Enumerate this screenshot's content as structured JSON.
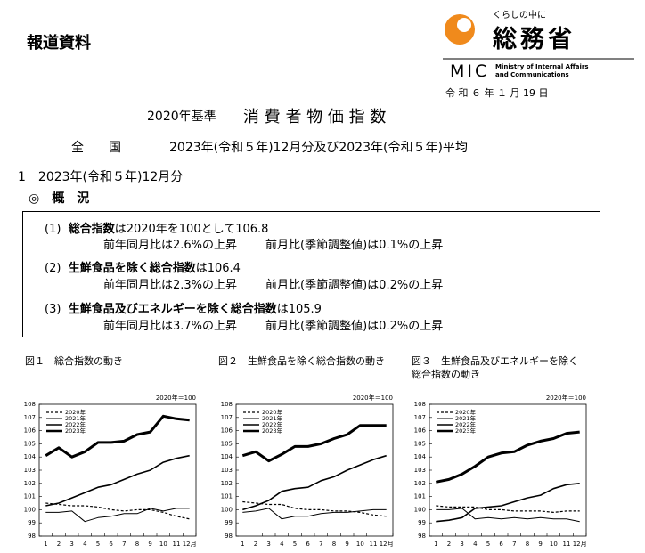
{
  "header": {
    "label": "報道資料",
    "logo": {
      "tagline": "くらしの中に",
      "name": "総務省",
      "abbr": "MIC",
      "english": [
        "Ministry of Internal Affairs",
        "and Communications"
      ]
    },
    "date": "令 和 ６ 年 １ 月 19 日"
  },
  "title": {
    "base": "2020年基準",
    "main": "消 費 者 物 価 指 数"
  },
  "scope": {
    "area": "全　　国",
    "period": "2023年(令和５年)12月分及び2023年(令和５年)平均"
  },
  "section": {
    "heading": "1　2023年(令和５年)12月分",
    "subheading": "◎　概　況"
  },
  "summary": [
    {
      "number": "(1)",
      "index": "総合指数",
      "level": "は2020年を100として106.8",
      "yoy": "前年同月比は2.6%の上昇",
      "mom": "前月比(季節調整値)は0.1%の上昇"
    },
    {
      "number": "(2)",
      "index": "生鮮食品を除く総合指数",
      "level": "は106.4",
      "yoy": "前年同月比は2.3%の上昇",
      "mom": "前月比(季節調整値)は0.2%の上昇"
    },
    {
      "number": "(3)",
      "index": "生鮮食品及びエネルギーを除く総合指数",
      "level": "は105.9",
      "yoy": "前年同月比は3.7%の上昇",
      "mom": "前月比(季節調整値)は0.2%の上昇"
    }
  ],
  "chart_data": [
    {
      "type": "line",
      "title": "図１　総合指数の動き",
      "note": "2020年＝100",
      "categories": [
        "1",
        "2",
        "3",
        "4",
        "5",
        "6",
        "7",
        "8",
        "9",
        "10",
        "11",
        "12月"
      ],
      "ylim": [
        98,
        108
      ],
      "yticks": [
        98,
        99,
        100,
        101,
        102,
        103,
        104,
        105,
        106,
        107,
        108
      ],
      "grid": false,
      "series": [
        {
          "name": "2020年",
          "color": "#000000",
          "dashed": true,
          "width": 1.2,
          "values": [
            100.5,
            100.4,
            100.3,
            100.3,
            100.2,
            100.0,
            99.9,
            100.0,
            100.0,
            99.8,
            99.5,
            99.3
          ]
        },
        {
          "name": "2021年",
          "color": "#000000",
          "dashed": false,
          "width": 1,
          "values": [
            99.8,
            99.8,
            99.9,
            99.1,
            99.4,
            99.5,
            99.7,
            99.7,
            100.1,
            99.9,
            100.1,
            100.1
          ]
        },
        {
          "name": "2022年",
          "color": "#000000",
          "dashed": false,
          "width": 1.6,
          "values": [
            100.3,
            100.5,
            100.9,
            101.3,
            101.7,
            101.9,
            102.3,
            102.7,
            103.0,
            103.6,
            103.9,
            104.1
          ]
        },
        {
          "name": "2023年",
          "color": "#000000",
          "dashed": false,
          "width": 3,
          "values": [
            104.1,
            104.7,
            104.0,
            104.4,
            105.1,
            105.1,
            105.2,
            105.7,
            105.9,
            107.1,
            106.9,
            106.8
          ]
        }
      ]
    },
    {
      "type": "line",
      "title": "図２　生鮮食品を除く総合指数の動き",
      "note": "2020年＝100",
      "categories": [
        "1",
        "2",
        "3",
        "4",
        "5",
        "6",
        "7",
        "8",
        "9",
        "10",
        "11",
        "12月"
      ],
      "ylim": [
        98,
        108
      ],
      "yticks": [
        98,
        99,
        100,
        101,
        102,
        103,
        104,
        105,
        106,
        107,
        108
      ],
      "grid": false,
      "series": [
        {
          "name": "2020年",
          "color": "#000000",
          "dashed": true,
          "width": 1.2,
          "values": [
            100.6,
            100.5,
            100.4,
            100.4,
            100.1,
            100.0,
            100.0,
            99.9,
            99.9,
            99.8,
            99.6,
            99.5
          ]
        },
        {
          "name": "2021年",
          "color": "#000000",
          "dashed": false,
          "width": 1,
          "values": [
            99.8,
            99.9,
            100.1,
            99.3,
            99.5,
            99.5,
            99.7,
            99.8,
            99.8,
            99.9,
            100.0,
            100.0
          ]
        },
        {
          "name": "2022年",
          "color": "#000000",
          "dashed": false,
          "width": 1.6,
          "values": [
            100.0,
            100.3,
            100.7,
            101.4,
            101.6,
            101.7,
            102.2,
            102.5,
            103.0,
            103.4,
            103.8,
            104.1
          ]
        },
        {
          "name": "2023年",
          "color": "#000000",
          "dashed": false,
          "width": 3,
          "values": [
            104.1,
            104.4,
            103.7,
            104.2,
            104.8,
            104.8,
            105.0,
            105.4,
            105.7,
            106.4,
            106.4,
            106.4
          ]
        }
      ]
    },
    {
      "type": "line",
      "title": "図３　生鮮食品及びエネルギーを除く総合指数の動き",
      "note": "2020年＝100",
      "categories": [
        "1",
        "2",
        "3",
        "4",
        "5",
        "6",
        "7",
        "8",
        "9",
        "10",
        "11",
        "12月"
      ],
      "ylim": [
        98,
        108
      ],
      "yticks": [
        98,
        99,
        100,
        101,
        102,
        103,
        104,
        105,
        106,
        107,
        108
      ],
      "grid": false,
      "series": [
        {
          "name": "2020年",
          "color": "#000000",
          "dashed": true,
          "width": 1.2,
          "values": [
            100.3,
            100.2,
            100.2,
            100.2,
            100.0,
            100.0,
            99.9,
            99.9,
            99.9,
            99.8,
            99.9,
            99.9
          ]
        },
        {
          "name": "2021年",
          "color": "#000000",
          "dashed": false,
          "width": 1,
          "values": [
            100.0,
            100.0,
            100.1,
            99.3,
            99.4,
            99.3,
            99.4,
            99.3,
            99.4,
            99.3,
            99.3,
            99.1
          ]
        },
        {
          "name": "2022年",
          "color": "#000000",
          "dashed": false,
          "width": 1.6,
          "values": [
            99.1,
            99.2,
            99.4,
            100.1,
            100.2,
            100.3,
            100.6,
            100.9,
            101.1,
            101.6,
            101.9,
            102.0
          ]
        },
        {
          "name": "2023年",
          "color": "#000000",
          "dashed": false,
          "width": 3,
          "values": [
            102.1,
            102.3,
            102.7,
            103.3,
            104.0,
            104.3,
            104.4,
            104.9,
            105.2,
            105.4,
            105.8,
            105.9
          ]
        }
      ]
    }
  ]
}
